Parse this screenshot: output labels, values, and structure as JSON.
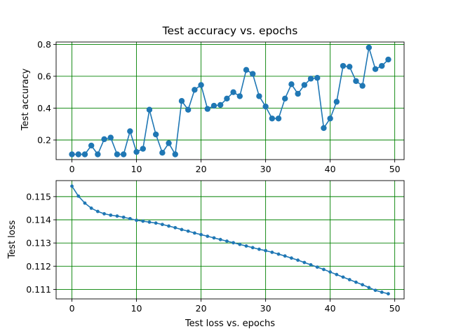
{
  "chart_data": [
    {
      "type": "line",
      "title": "Test accuracy vs. epochs",
      "xlabel": "",
      "ylabel": "Test accuracy",
      "xlim": [
        -2.45,
        51.45
      ],
      "ylim": [
        0.077,
        0.815
      ],
      "xticks": [
        0,
        10,
        20,
        30,
        40,
        50
      ],
      "yticks": [
        0.2,
        0.4,
        0.6,
        0.8
      ],
      "ytick_labels": [
        "0.2",
        "0.4",
        "0.6",
        "0.8"
      ],
      "grid": true,
      "grid_color": "#008000",
      "line_color": "#1f77b4",
      "marker": "circle",
      "series": [
        {
          "x": [
            0,
            1,
            2,
            3,
            4,
            5,
            6,
            7,
            8,
            9,
            10,
            11,
            12,
            13,
            14,
            15,
            16,
            17,
            18,
            19,
            20,
            21,
            22,
            23,
            24,
            25,
            26,
            27,
            28,
            29,
            30,
            31,
            32,
            33,
            34,
            35,
            36,
            37,
            38,
            39,
            40,
            41,
            42,
            43,
            44,
            45,
            46,
            47,
            48,
            49
          ],
          "y": [
            0.11,
            0.11,
            0.11,
            0.165,
            0.11,
            0.205,
            0.215,
            0.11,
            0.11,
            0.255,
            0.125,
            0.145,
            0.39,
            0.235,
            0.12,
            0.18,
            0.11,
            0.445,
            0.39,
            0.515,
            0.545,
            0.395,
            0.415,
            0.42,
            0.46,
            0.5,
            0.475,
            0.64,
            0.615,
            0.475,
            0.41,
            0.335,
            0.335,
            0.46,
            0.55,
            0.49,
            0.545,
            0.585,
            0.59,
            0.275,
            0.335,
            0.44,
            0.665,
            0.66,
            0.57,
            0.54,
            0.78,
            0.645,
            0.665,
            0.705
          ]
        }
      ]
    },
    {
      "type": "line",
      "title": "",
      "xlabel": "Test loss vs. epochs",
      "ylabel": "Test loss",
      "xlim": [
        -2.45,
        51.45
      ],
      "ylim": [
        0.11059,
        0.11569
      ],
      "xticks": [
        0,
        10,
        20,
        30,
        40,
        50
      ],
      "yticks": [
        0.111,
        0.112,
        0.113,
        0.114,
        0.115
      ],
      "ytick_labels": [
        "0.111",
        "0.112",
        "0.113",
        "0.114",
        "0.115"
      ],
      "grid": true,
      "grid_color": "#008000",
      "line_color": "#1f77b4",
      "marker": "small-circle",
      "series": [
        {
          "x": [
            0,
            1,
            2,
            3,
            4,
            5,
            6,
            7,
            8,
            9,
            10,
            11,
            12,
            13,
            14,
            15,
            16,
            17,
            18,
            19,
            20,
            21,
            22,
            23,
            24,
            25,
            26,
            27,
            28,
            29,
            30,
            31,
            32,
            33,
            34,
            35,
            36,
            37,
            38,
            39,
            40,
            41,
            42,
            43,
            44,
            45,
            46,
            47,
            48,
            49
          ],
          "y": [
            0.11545,
            0.11502,
            0.11472,
            0.1145,
            0.11436,
            0.11426,
            0.1142,
            0.11416,
            0.11411,
            0.11405,
            0.11398,
            0.11394,
            0.1139,
            0.11386,
            0.1138,
            0.11373,
            0.11366,
            0.11358,
            0.11351,
            0.11343,
            0.11336,
            0.11329,
            0.11322,
            0.11315,
            0.11308,
            0.11301,
            0.11294,
            0.11287,
            0.1128,
            0.11273,
            0.11267,
            0.1126,
            0.11252,
            0.11244,
            0.11235,
            0.11226,
            0.11216,
            0.11206,
            0.11196,
            0.11186,
            0.11175,
            0.11164,
            0.11153,
            0.11142,
            0.11131,
            0.1112,
            0.11108,
            0.11096,
            0.11088,
            0.11081
          ]
        }
      ]
    }
  ]
}
